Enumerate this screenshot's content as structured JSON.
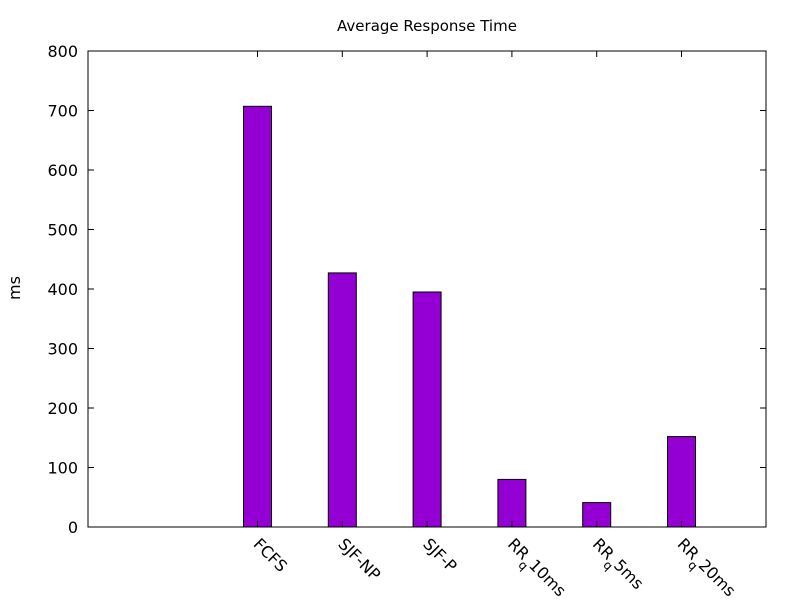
{
  "chart_data": {
    "type": "bar",
    "title": "Average Response Time",
    "xlabel": "",
    "ylabel": "ms",
    "ylim": [
      0,
      800
    ],
    "yticks": [
      0,
      100,
      200,
      300,
      400,
      500,
      600,
      700,
      800
    ],
    "categories": [
      "FCFS",
      "SJF-NP",
      "SJF-P",
      "RRq10ms",
      "RRq5ms",
      "RRq20ms"
    ],
    "category_labels": [
      {
        "main": "FCFS",
        "sub": ""
      },
      {
        "main": "SJF-NP",
        "sub": ""
      },
      {
        "main": "SJF-P",
        "sub": ""
      },
      {
        "main": "RR",
        "sub": "q",
        "rest": "10ms"
      },
      {
        "main": "RR",
        "sub": "q",
        "rest": "5ms"
      },
      {
        "main": "RR",
        "sub": "q",
        "rest": "20ms"
      }
    ],
    "values": [
      707,
      427,
      395,
      80,
      41,
      152
    ],
    "bar_color": "#9400d3",
    "grid": false,
    "legend": false
  }
}
